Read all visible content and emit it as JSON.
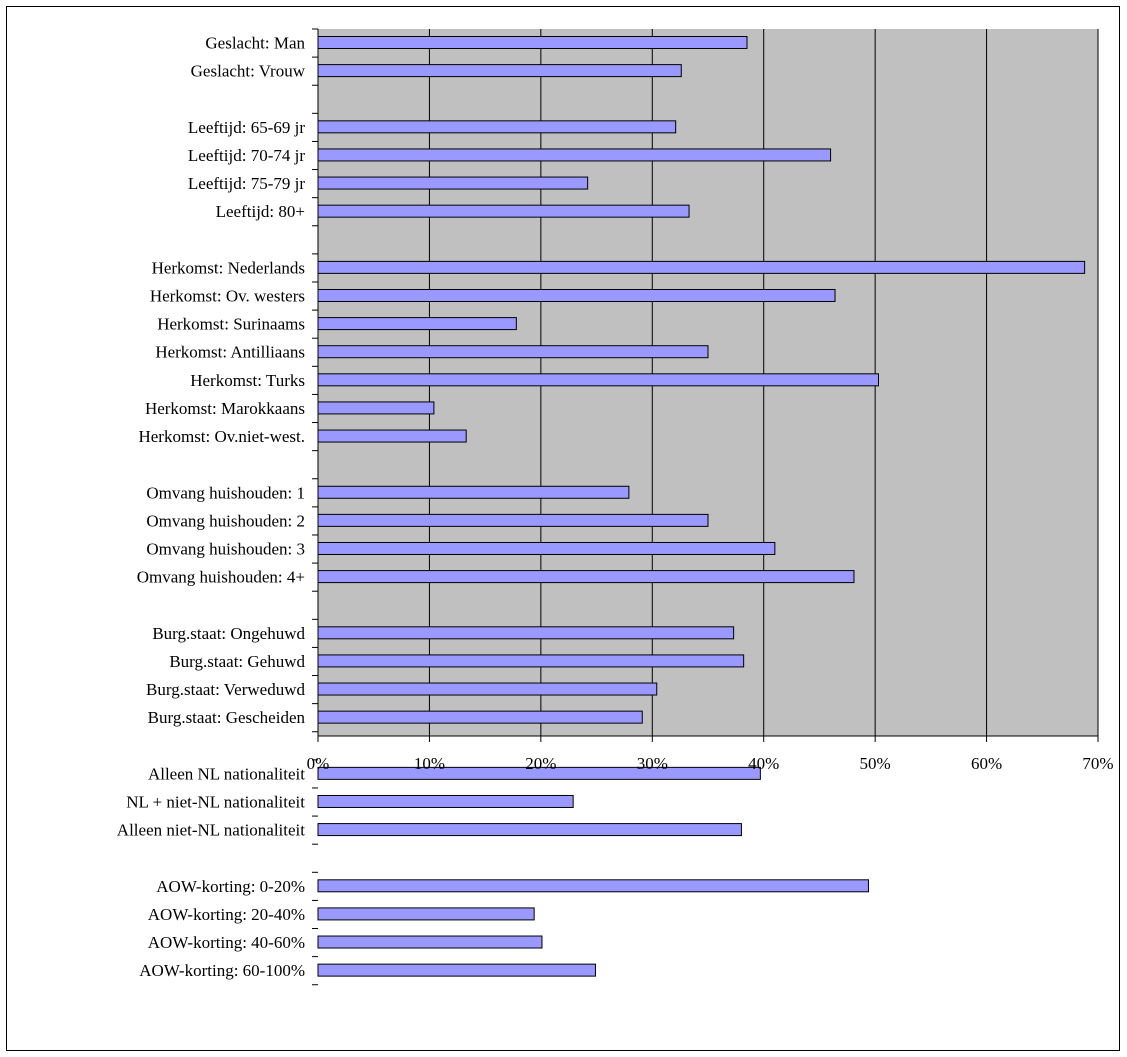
{
  "chart_data": {
    "type": "bar",
    "orientation": "horizontal",
    "title": "",
    "xlabel": "",
    "ylabel": "",
    "xlim": [
      0,
      70
    ],
    "x_unit": "%",
    "x_ticks": [
      "0%",
      "10%",
      "20%",
      "30%",
      "40%",
      "50%",
      "60%",
      "70%"
    ],
    "grid": true,
    "legend": "none",
    "colors": {
      "bar_fill": "#9999ff",
      "bar_stroke": "#000000",
      "plot_background": "#c0c0c0",
      "gridline": "#000000"
    },
    "categories": [
      "Geslacht: Man",
      "Geslacht: Vrouw",
      "",
      "Leeftijd: 65-69 jr",
      "Leeftijd: 70-74 jr",
      "Leeftijd: 75-79 jr",
      "Leeftijd: 80+",
      "",
      "Herkomst: Nederlands",
      "Herkomst: Ov. westers",
      "Herkomst: Surinaams",
      "Herkomst: Antilliaans",
      "Herkomst: Turks",
      "Herkomst: Marokkaans",
      "Herkomst: Ov.niet-west.",
      "",
      "Omvang huishouden: 1",
      "Omvang huishouden: 2",
      "Omvang huishouden: 3",
      "Omvang huishouden: 4+",
      "",
      "Burg.staat: Ongehuwd",
      "Burg.staat: Gehuwd",
      "Burg.staat: Verweduwd",
      "Burg.staat: Gescheiden",
      "",
      "Alleen NL nationaliteit",
      "NL + niet-NL nationaliteit",
      "Alleen niet-NL nationaliteit",
      "",
      "AOW-korting: 0-20%",
      "AOW-korting: 20-40%",
      "AOW-korting: 40-60%",
      "AOW-korting: 60-100%"
    ],
    "values": [
      38.5,
      32.6,
      null,
      32.1,
      46.0,
      24.2,
      33.3,
      null,
      68.8,
      46.4,
      17.8,
      35.0,
      50.3,
      10.4,
      13.3,
      null,
      27.9,
      35.0,
      41.0,
      48.1,
      null,
      37.3,
      38.2,
      30.4,
      29.1,
      null,
      39.7,
      22.9,
      38.0,
      null,
      49.4,
      19.4,
      20.1,
      24.9
    ]
  }
}
